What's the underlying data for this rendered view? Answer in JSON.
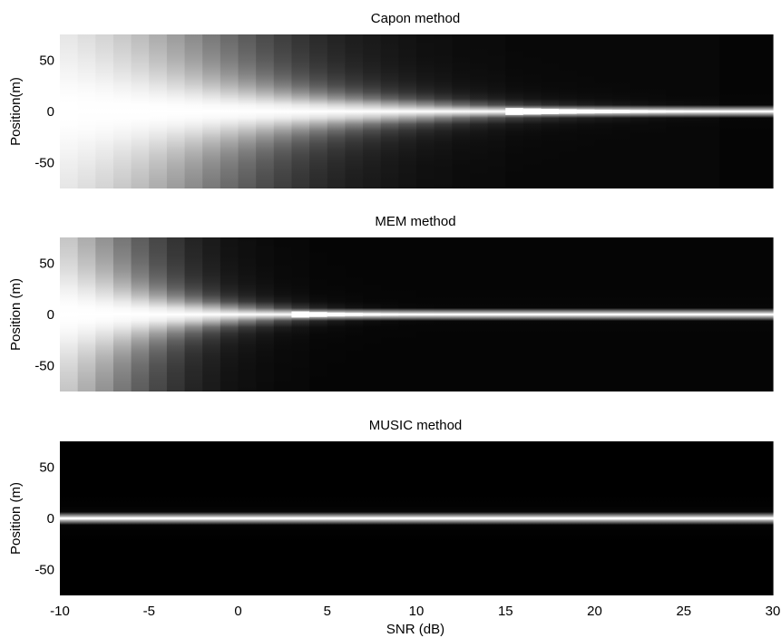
{
  "chart_data": [
    {
      "type": "heatmap",
      "title": "Capon method",
      "xlabel": "",
      "ylabel": "Position(m)",
      "xlim": [
        -10,
        30
      ],
      "ylim": [
        -75,
        75
      ],
      "colormap": "gray",
      "background_color": "#000000",
      "xticks": [],
      "yticks": [
        50,
        0,
        -50
      ],
      "ytick_labels": [
        "50",
        "0",
        "-50"
      ],
      "x_values_db": [
        -10,
        -9,
        -8,
        -7,
        -6,
        -5,
        -4,
        -3,
        -2,
        -1,
        0,
        1,
        2,
        3,
        4,
        5,
        6,
        7,
        8,
        9,
        10,
        11,
        12,
        13,
        14,
        15,
        16,
        17,
        18,
        19,
        20,
        21,
        22,
        23,
        24,
        25,
        26,
        27,
        28,
        29
      ],
      "peak_position_m": 0,
      "beam_halfwidth_m": [
        75,
        68,
        61,
        55,
        50,
        45,
        40,
        36,
        32,
        28.5,
        25.5,
        22.5,
        20,
        17.5,
        15.5,
        13.5,
        12,
        10.5,
        9,
        8,
        7,
        6,
        5.2,
        4.5,
        3.9,
        3.4,
        3,
        2.6,
        2.3,
        2.0,
        1.8,
        1.6,
        1.4,
        1.2,
        1.0,
        0.9,
        0.8,
        0.6,
        0.6,
        0.6
      ],
      "background_level": [
        0.8,
        0.76,
        0.72,
        0.67,
        0.62,
        0.56,
        0.5,
        0.44,
        0.38,
        0.33,
        0.28,
        0.23,
        0.19,
        0.16,
        0.13,
        0.11,
        0.09,
        0.08,
        0.07,
        0.06,
        0.05,
        0.05,
        0.04,
        0.04,
        0.04,
        0.03,
        0.03,
        0.03,
        0.03,
        0.03,
        0.03,
        0.03,
        0.03,
        0.03,
        0.03,
        0.03,
        0.03,
        0.02,
        0.02,
        0.02
      ]
    },
    {
      "type": "heatmap",
      "title": "MEM method",
      "xlabel": "",
      "ylabel": "Position (m)",
      "xlim": [
        -10,
        30
      ],
      "ylim": [
        -75,
        75
      ],
      "colormap": "gray",
      "background_color": "#000000",
      "xticks": [],
      "yticks": [
        50,
        0,
        -50
      ],
      "ytick_labels": [
        "50",
        "0",
        "-50"
      ],
      "x_values_db": [
        -10,
        -9,
        -8,
        -7,
        -6,
        -5,
        -4,
        -3,
        -2,
        -1,
        0,
        1,
        2,
        3,
        4,
        5,
        6,
        7,
        8,
        9,
        10,
        11,
        12,
        13,
        14,
        15,
        16,
        17,
        18,
        19,
        20,
        21,
        22,
        23,
        24,
        25,
        26,
        27,
        28,
        29
      ],
      "peak_position_m": 0,
      "beam_halfwidth_m": [
        55,
        45,
        37,
        30,
        24,
        19,
        15,
        12,
        9.5,
        7.5,
        6,
        4.8,
        3.8,
        3,
        2.4,
        1.9,
        1.5,
        1.2,
        1,
        0.8,
        0.7,
        0.6,
        0.6,
        0.6,
        0.6,
        0.6,
        0.6,
        0.6,
        0.6,
        0.6,
        0.6,
        0.6,
        0.6,
        0.6,
        0.6,
        0.6,
        0.6,
        0.6,
        0.6,
        0.6
      ],
      "background_level": [
        0.65,
        0.56,
        0.47,
        0.38,
        0.3,
        0.23,
        0.17,
        0.12,
        0.09,
        0.06,
        0.05,
        0.04,
        0.03,
        0.03,
        0.02,
        0.02,
        0.02,
        0.02,
        0.02,
        0.02,
        0.02,
        0.02,
        0.02,
        0.02,
        0.02,
        0.02,
        0.02,
        0.02,
        0.02,
        0.02,
        0.02,
        0.02,
        0.02,
        0.02,
        0.02,
        0.02,
        0.02,
        0.02,
        0.02,
        0.02
      ]
    },
    {
      "type": "heatmap",
      "title": "MUSIC method",
      "xlabel": "SNR (dB)",
      "ylabel": "Position (m)",
      "xlim": [
        -10,
        30
      ],
      "ylim": [
        -75,
        75
      ],
      "colormap": "gray",
      "background_color": "#000000",
      "xticks": [
        -10,
        -5,
        0,
        5,
        10,
        15,
        20,
        25,
        30
      ],
      "xtick_labels": [
        "-10",
        "-5",
        "0",
        "5",
        "10",
        "15",
        "20",
        "25",
        "30"
      ],
      "yticks": [
        50,
        0,
        -50
      ],
      "ytick_labels": [
        "50",
        "0",
        "-50"
      ],
      "x_values_db": [
        -10,
        -9,
        -8,
        -7,
        -6,
        -5,
        -4,
        -3,
        -2,
        -1,
        0,
        1,
        2,
        3,
        4,
        5,
        6,
        7,
        8,
        9,
        10,
        11,
        12,
        13,
        14,
        15,
        16,
        17,
        18,
        19,
        20,
        21,
        22,
        23,
        24,
        25,
        26,
        27,
        28,
        29
      ],
      "peak_position_m": 0,
      "beam_halfwidth_m": [
        1.0,
        1.0,
        1.0,
        1.0,
        1.0,
        1.0,
        1.0,
        1.0,
        1.0,
        1.0,
        1.0,
        1.0,
        1.0,
        1.0,
        1.0,
        1.0,
        1.0,
        1.0,
        1.0,
        1.0,
        1.0,
        1.0,
        1.0,
        1.0,
        1.0,
        1.0,
        1.0,
        1.0,
        1.0,
        1.0,
        1.0,
        1.0,
        1.0,
        1.0,
        1.0,
        1.0,
        1.0,
        1.0,
        1.0,
        1.0
      ],
      "background_level": [
        0.0,
        0.0,
        0.0,
        0.0,
        0.0,
        0.0,
        0.0,
        0.0,
        0.0,
        0.0,
        0.0,
        0.0,
        0.0,
        0.0,
        0.0,
        0.0,
        0.0,
        0.0,
        0.0,
        0.0,
        0.0,
        0.0,
        0.0,
        0.0,
        0.0,
        0.0,
        0.0,
        0.0,
        0.0,
        0.0,
        0.0,
        0.0,
        0.0,
        0.0,
        0.0,
        0.0,
        0.0,
        0.0,
        0.0,
        0.0
      ]
    }
  ]
}
